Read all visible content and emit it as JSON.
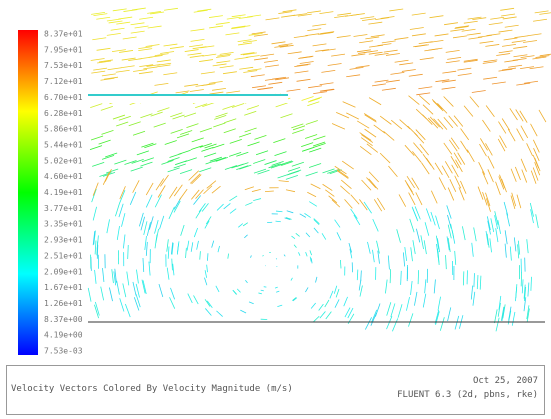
{
  "colorbar": {
    "labels": [
      "8.37e+01",
      "7.95e+01",
      "7.53e+01",
      "7.12e+01",
      "6.70e+01",
      "6.28e+01",
      "5.86e+01",
      "5.44e+01",
      "5.02e+01",
      "4.60e+01",
      "4.19e+01",
      "3.77e+01",
      "3.35e+01",
      "2.93e+01",
      "2.51e+01",
      "2.09e+01",
      "1.67e+01",
      "1.26e+01",
      "8.37e+00",
      "4.19e+00",
      "7.53e-03"
    ]
  },
  "caption": {
    "title": "Velocity Vectors Colored By Velocity Magnitude (m/s)",
    "date": "Oct 25, 2007",
    "solver": "FLUENT 6.3 (2d, pbns, rke)"
  }
}
